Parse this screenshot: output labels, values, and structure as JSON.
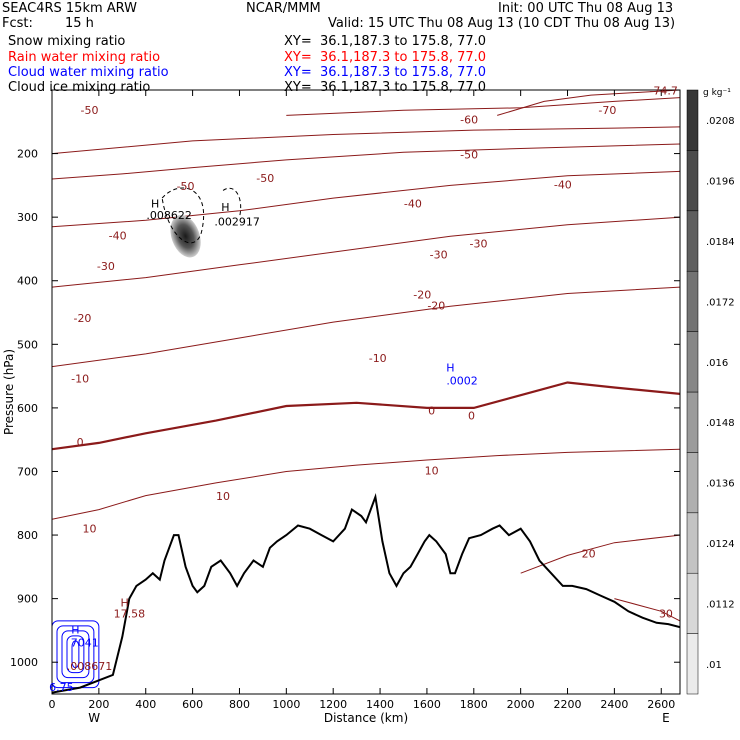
{
  "header": {
    "line1_left": "SEAC4RS 15km ARW",
    "line1_center": "NCAR/MMM",
    "line1_right": "Init: 00 UTC Thu 08 Aug 13",
    "fcst_label": "Fcst:",
    "fcst_value": "15 h",
    "valid": "Valid: 15 UTC Thu 08 Aug 13 (10 CDT Thu 08 Aug 13)"
  },
  "fields": [
    {
      "name": "Snow mixing ratio",
      "xy": "XY=  36.1,187.3 to 175.8, 77.0",
      "color": "#000000"
    },
    {
      "name": "Rain water mixing ratio",
      "xy": "XY=  36.1,187.3 to 175.8, 77.0",
      "color": "#ff0000"
    },
    {
      "name": "Cloud water mixing ratio",
      "xy": "XY=  36.1,187.3 to 175.8, 77.0",
      "color": "#0000ff"
    },
    {
      "name": "Cloud ice mixing ratio",
      "xy": "XY=  36.1,187.3 to 175.8, 77.0",
      "color": "#000000"
    }
  ],
  "colors": {
    "temperature_contour": "#8b1a1a",
    "cloud_water_contour": "#0000ff",
    "terrain": "#000000"
  },
  "chart_data": {
    "type": "cross-section",
    "xlabel": "Distance (km)",
    "ylabel": "Pressure (hPa)",
    "x_ticks": [
      "0",
      "200",
      "400",
      "600",
      "800",
      "1000",
      "1200",
      "1400",
      "1600",
      "1800",
      "2000",
      "2200",
      "2400",
      "2600"
    ],
    "y_ticks": [
      "200",
      "300",
      "400",
      "500",
      "600",
      "700",
      "800",
      "900",
      "1000"
    ],
    "xlim": [
      0,
      2680
    ],
    "ylim": [
      100,
      1050
    ],
    "y_reversed": true,
    "endpoints": {
      "left": "W",
      "right": "E"
    },
    "colorbar": {
      "unit": "g kg⁻¹",
      "ticks": [
        ".01",
        ".0112",
        ".0124",
        ".0136",
        ".0148",
        ".016",
        ".0172",
        ".0184",
        ".0196",
        ".0208"
      ]
    },
    "isotherms": [
      {
        "label": "-70",
        "pts": [
          [
            1900,
            140
          ],
          [
            2100,
            118
          ],
          [
            2300,
            108
          ],
          [
            2680,
            100
          ]
        ]
      },
      {
        "label": "-60",
        "pts": [
          [
            1000,
            140
          ],
          [
            1500,
            132
          ],
          [
            2000,
            128
          ],
          [
            2400,
            118
          ],
          [
            2680,
            112
          ]
        ]
      },
      {
        "label": "-50",
        "pts": [
          [
            0,
            200
          ],
          [
            600,
            180
          ],
          [
            1200,
            170
          ],
          [
            1800,
            163
          ],
          [
            2400,
            160
          ],
          [
            2680,
            158
          ]
        ]
      },
      {
        "label": "-40",
        "pts": [
          [
            0,
            240
          ],
          [
            300,
            232
          ],
          [
            600,
            222
          ],
          [
            1000,
            210
          ],
          [
            1500,
            198
          ],
          [
            2000,
            192
          ],
          [
            2680,
            185
          ]
        ]
      },
      {
        "label": "-30",
        "pts": [
          [
            0,
            315
          ],
          [
            400,
            305
          ],
          [
            800,
            290
          ],
          [
            1200,
            270
          ],
          [
            1700,
            250
          ],
          [
            2200,
            235
          ],
          [
            2680,
            228
          ]
        ]
      },
      {
        "label": "-20",
        "pts": [
          [
            0,
            410
          ],
          [
            400,
            395
          ],
          [
            800,
            375
          ],
          [
            1200,
            355
          ],
          [
            1700,
            330
          ],
          [
            2200,
            312
          ],
          [
            2680,
            300
          ]
        ]
      },
      {
        "label": "-10",
        "pts": [
          [
            0,
            535
          ],
          [
            400,
            515
          ],
          [
            800,
            490
          ],
          [
            1200,
            465
          ],
          [
            1700,
            440
          ],
          [
            2200,
            420
          ],
          [
            2680,
            410
          ]
        ]
      },
      {
        "label": "0",
        "pts": [
          [
            0,
            665
          ],
          [
            200,
            655
          ],
          [
            400,
            640
          ],
          [
            700,
            620
          ],
          [
            1000,
            597
          ],
          [
            1300,
            592
          ],
          [
            1600,
            600
          ],
          [
            1800,
            600
          ],
          [
            2000,
            580
          ],
          [
            2200,
            560
          ],
          [
            2400,
            568
          ],
          [
            2680,
            578
          ]
        ]
      },
      {
        "label": "10",
        "pts": [
          [
            0,
            775
          ],
          [
            200,
            760
          ],
          [
            400,
            738
          ],
          [
            700,
            718
          ],
          [
            1000,
            700
          ],
          [
            1300,
            690
          ],
          [
            1600,
            682
          ],
          [
            1900,
            675
          ],
          [
            2200,
            670
          ],
          [
            2680,
            665
          ]
        ]
      },
      {
        "label": "20",
        "pts": [
          [
            2000,
            860
          ],
          [
            2200,
            832
          ],
          [
            2400,
            812
          ],
          [
            2680,
            800
          ]
        ]
      },
      {
        "label": "30",
        "pts": [
          [
            2400,
            900
          ],
          [
            2600,
            920
          ],
          [
            2680,
            935
          ]
        ]
      }
    ],
    "labels_printed": [
      {
        "text": "-50",
        "x": 160,
        "y": 138
      },
      {
        "text": "-50",
        "x": 570,
        "y": 257
      },
      {
        "text": "-50",
        "x": 910,
        "y": 245
      },
      {
        "text": "-40",
        "x": 280,
        "y": 335
      },
      {
        "text": "-30",
        "x": 230,
        "y": 383
      },
      {
        "text": "-20",
        "x": 130,
        "y": 465
      },
      {
        "text": "-10",
        "x": 120,
        "y": 560
      },
      {
        "text": "0",
        "x": 120,
        "y": 660
      },
      {
        "text": "-40",
        "x": 1540,
        "y": 285
      },
      {
        "text": "-30",
        "x": 1650,
        "y": 365
      },
      {
        "text": "-20",
        "x": 1640,
        "y": 445
      },
      {
        "text": "-10",
        "x": 1390,
        "y": 528
      },
      {
        "text": "0",
        "x": 1620,
        "y": 610
      },
      {
        "text": "10",
        "x": 1620,
        "y": 705
      },
      {
        "text": "10",
        "x": 730,
        "y": 745
      },
      {
        "text": "10",
        "x": 160,
        "y": 796
      },
      {
        "text": "0",
        "x": 1790,
        "y": 618
      },
      {
        "text": "-60",
        "x": 1780,
        "y": 153
      },
      {
        "text": "-70",
        "x": 2370,
        "y": 138
      },
      {
        "text": "-50",
        "x": 1780,
        "y": 208
      },
      {
        "text": "-40",
        "x": 2180,
        "y": 255
      },
      {
        "text": "-30",
        "x": 1820,
        "y": 348
      },
      {
        "text": "-20",
        "x": 1580,
        "y": 428
      },
      {
        "text": "20",
        "x": 2290,
        "y": 835
      },
      {
        "text": "30",
        "x": 2620,
        "y": 930
      },
      {
        "text": "-74.7",
        "x": 2610,
        "y": 107
      }
    ],
    "extrema": [
      {
        "text": "H",
        "x": 440,
        "y": 285,
        "color": "#000000"
      },
      {
        "text": ".008622",
        "x": 500,
        "y": 303,
        "color": "#000000"
      },
      {
        "text": "H",
        "x": 740,
        "y": 290,
        "color": "#000000"
      },
      {
        "text": ".002917",
        "x": 790,
        "y": 313,
        "color": "#000000"
      },
      {
        "text": "H",
        "x": 1700,
        "y": 543,
        "color": "#0000ff"
      },
      {
        "text": ".0002",
        "x": 1750,
        "y": 563,
        "color": "#0000ff"
      },
      {
        "text": "H",
        "x": 310,
        "y": 912,
        "color": "#8b1a1a"
      },
      {
        "text": "17.58",
        "x": 330,
        "y": 930,
        "color": "#8b1a1a"
      },
      {
        "text": "H",
        "x": 100,
        "y": 955,
        "color": "#0000ff"
      },
      {
        "text": "7041",
        "x": 140,
        "y": 975,
        "color": "#0000ff"
      },
      {
        "text": ".008671",
        "x": 160,
        "y": 1012,
        "color": "#8b1a1a"
      },
      {
        "text": "6.75",
        "x": 40,
        "y": 1045,
        "color": "#0000ff"
      }
    ],
    "terrain_profile": [
      [
        0,
        1048
      ],
      [
        120,
        1040
      ],
      [
        260,
        1020
      ],
      [
        300,
        960
      ],
      [
        330,
        900
      ],
      [
        360,
        880
      ],
      [
        400,
        870
      ],
      [
        430,
        860
      ],
      [
        460,
        870
      ],
      [
        480,
        840
      ],
      [
        500,
        820
      ],
      [
        520,
        800
      ],
      [
        540,
        800
      ],
      [
        570,
        850
      ],
      [
        600,
        880
      ],
      [
        620,
        890
      ],
      [
        650,
        880
      ],
      [
        680,
        850
      ],
      [
        720,
        840
      ],
      [
        760,
        860
      ],
      [
        790,
        880
      ],
      [
        820,
        860
      ],
      [
        860,
        840
      ],
      [
        900,
        850
      ],
      [
        930,
        820
      ],
      [
        960,
        810
      ],
      [
        1000,
        800
      ],
      [
        1050,
        785
      ],
      [
        1100,
        790
      ],
      [
        1150,
        800
      ],
      [
        1200,
        810
      ],
      [
        1250,
        790
      ],
      [
        1280,
        760
      ],
      [
        1320,
        770
      ],
      [
        1340,
        780
      ],
      [
        1380,
        740
      ],
      [
        1410,
        810
      ],
      [
        1440,
        860
      ],
      [
        1470,
        880
      ],
      [
        1500,
        860
      ],
      [
        1530,
        850
      ],
      [
        1560,
        830
      ],
      [
        1590,
        810
      ],
      [
        1610,
        800
      ],
      [
        1640,
        810
      ],
      [
        1680,
        830
      ],
      [
        1700,
        860
      ],
      [
        1720,
        860
      ],
      [
        1750,
        830
      ],
      [
        1780,
        805
      ],
      [
        1830,
        800
      ],
      [
        1880,
        790
      ],
      [
        1910,
        785
      ],
      [
        1950,
        800
      ],
      [
        2000,
        790
      ],
      [
        2040,
        810
      ],
      [
        2080,
        840
      ],
      [
        2130,
        860
      ],
      [
        2180,
        880
      ],
      [
        2220,
        880
      ],
      [
        2280,
        885
      ],
      [
        2340,
        895
      ],
      [
        2400,
        905
      ],
      [
        2460,
        920
      ],
      [
        2520,
        930
      ],
      [
        2580,
        938
      ],
      [
        2630,
        940
      ],
      [
        2680,
        945
      ]
    ]
  }
}
